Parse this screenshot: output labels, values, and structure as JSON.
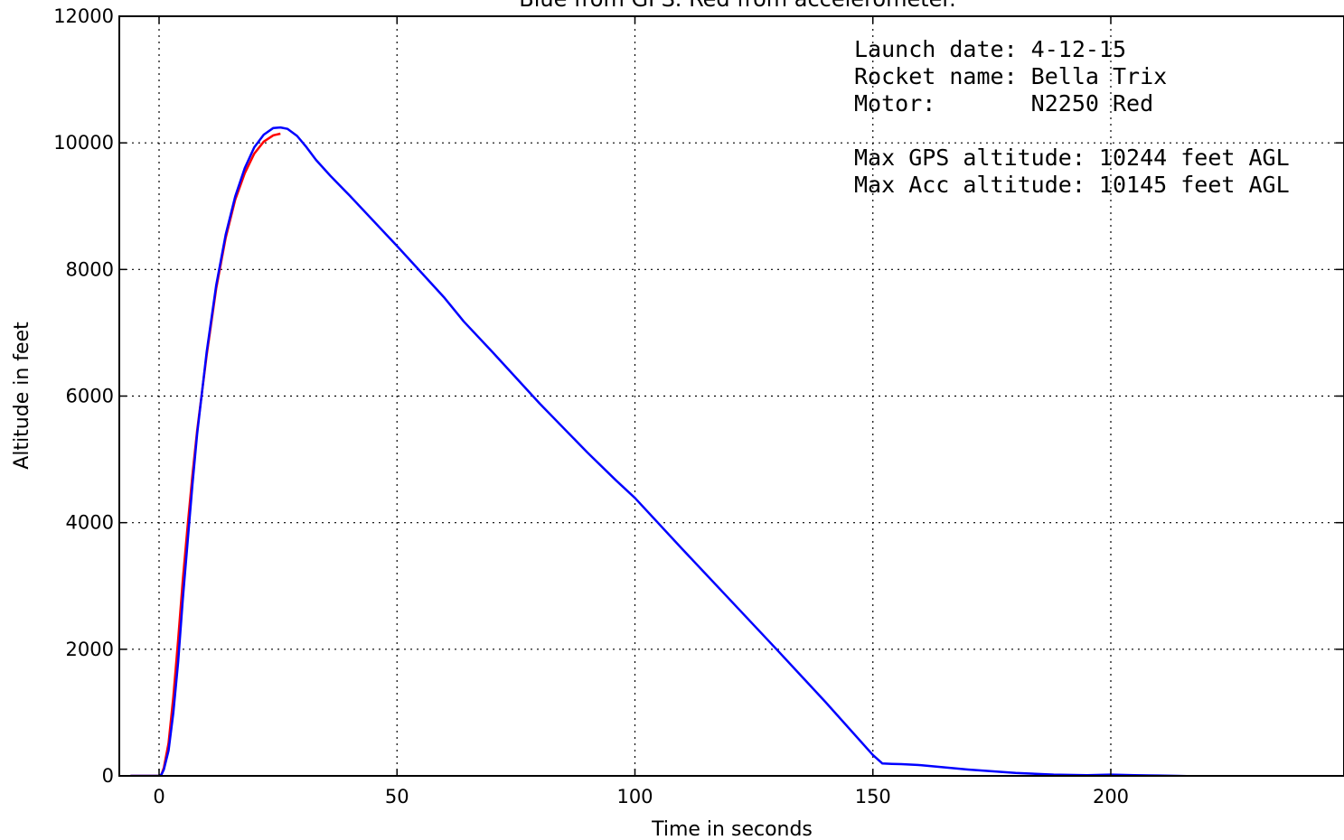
{
  "chart_data": {
    "type": "line",
    "title": "Blue from GPS.     Red from accelerometer.",
    "xlabel": "Time in seconds",
    "ylabel": "Altitude in feet",
    "xlim": [
      -8,
      248
    ],
    "ylim": [
      0,
      12000
    ],
    "xticks": [
      0,
      50,
      100,
      150,
      200
    ],
    "yticks": [
      0,
      2000,
      4000,
      6000,
      8000,
      10000,
      12000
    ],
    "xtick_labels": [
      "0",
      "50",
      "100",
      "150",
      "200"
    ],
    "ytick_labels": [
      "0",
      "2000",
      "4000",
      "6000",
      "8000",
      "10000",
      "12000"
    ],
    "grid": true,
    "annotations": [
      "Launch date: 4-12-15",
      "Rocket name: Bella Trix",
      "Motor:       N2250 Red",
      "",
      "Max GPS altitude: 10244 feet AGL",
      "Max Acc altitude: 10145 feet AGL"
    ],
    "series": [
      {
        "color": "#0000ff",
        "x": [
          -6,
          0,
          0.5,
          1,
          2,
          3,
          4,
          5,
          6,
          7,
          8,
          10,
          12,
          14,
          16,
          18,
          20,
          22,
          24,
          25.5,
          27,
          29,
          31,
          33,
          36,
          40,
          50,
          60,
          64,
          70,
          80,
          90,
          96,
          100,
          110,
          120,
          130,
          140,
          150,
          152,
          154,
          156,
          160,
          170,
          180,
          188,
          195,
          200,
          205,
          210,
          214,
          220,
          230,
          240,
          248
        ],
        "y": [
          0,
          0,
          20,
          100,
          400,
          1000,
          1800,
          2800,
          3700,
          4600,
          5400,
          6700,
          7750,
          8550,
          9150,
          9600,
          9930,
          10130,
          10235,
          10244,
          10220,
          10110,
          9930,
          9730,
          9480,
          9170,
          8370,
          7550,
          7180,
          6700,
          5880,
          5110,
          4670,
          4390,
          3580,
          2780,
          1980,
          1170,
          330,
          195,
          190,
          185,
          170,
          100,
          45,
          20,
          10,
          20,
          10,
          5,
          0,
          -10,
          -10,
          -10,
          -10
        ]
      },
      {
        "color": "#ff0000",
        "x": [
          -6,
          0,
          0.5,
          1,
          2,
          3,
          4,
          5,
          6,
          7,
          8,
          10,
          12,
          14,
          16,
          18,
          20,
          22,
          24,
          25.5
        ],
        "y": [
          0,
          0,
          20,
          130,
          520,
          1250,
          2150,
          3100,
          3950,
          4750,
          5450,
          6650,
          7700,
          8500,
          9100,
          9520,
          9830,
          10020,
          10120,
          10145
        ]
      }
    ]
  }
}
